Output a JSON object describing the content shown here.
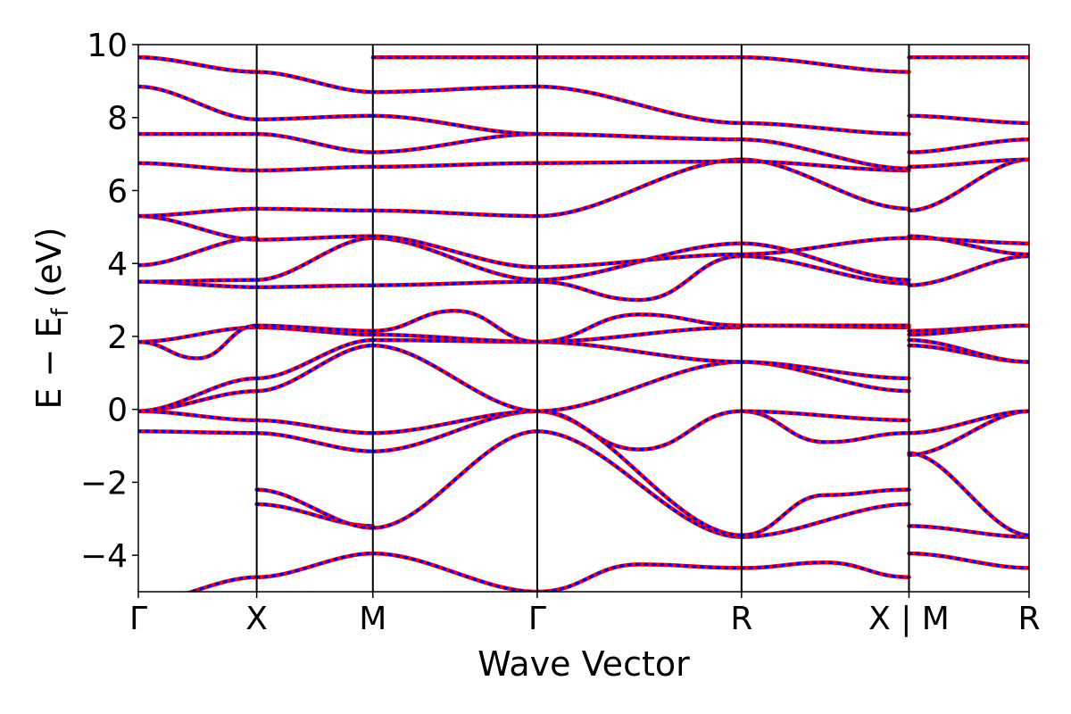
{
  "chart_data": {
    "type": "line",
    "title": "",
    "xlabel": "Wave Vector",
    "ylabel": "E − E",
    "ylabel_sub": "f",
    "ylabel_unit": " (eV)",
    "ylim": [
      -5,
      10
    ],
    "xlim": [
      0,
      1
    ],
    "yticks": [
      -4,
      -2,
      0,
      2,
      4,
      6,
      8,
      10
    ],
    "ytick_labels": [
      "−4",
      "−2",
      "0",
      "2",
      "4",
      "6",
      "8",
      "10"
    ],
    "kpoints": [
      {
        "x": 0.0,
        "label": "Γ"
      },
      {
        "x": 0.1329,
        "label": "X"
      },
      {
        "x": 0.2633,
        "label": "M"
      },
      {
        "x": 0.4478,
        "label": "Γ"
      },
      {
        "x": 0.6772,
        "label": "R"
      },
      {
        "x": 0.8652,
        "label": "X | M"
      },
      {
        "x": 1.0,
        "label": "R"
      }
    ],
    "colors": {
      "series_a": "#ff0000",
      "series_b": "#0000ff",
      "frame": "#000000"
    },
    "segments": [
      {
        "x": [
          0.0,
          0.1329
        ],
        "bands": [
          [
            -5.3,
            -4.6
          ],
          [
            -0.6,
            -0.65
          ],
          [
            -0.05,
            -0.3
          ],
          [
            -0.05,
            0.5
          ],
          [
            -0.05,
            0.85
          ],
          [
            1.85,
            2.25
          ],
          [
            1.85,
            1.4,
            2.3
          ],
          [
            3.5,
            3.35
          ],
          [
            3.5,
            3.55
          ],
          [
            3.95,
            4.7
          ],
          [
            5.3,
            4.65
          ],
          [
            5.3,
            5.5
          ],
          [
            6.75,
            6.55
          ],
          [
            7.55,
            7.55
          ],
          [
            8.85,
            7.95
          ],
          [
            9.65,
            9.25
          ],
          [
            9.65,
            9.25
          ]
        ]
      },
      {
        "x": [
          0.1329,
          0.2633
        ],
        "bands": [
          [
            -4.6,
            -3.95
          ],
          [
            -2.6,
            -3.2
          ],
          [
            -2.2,
            -3.25
          ],
          [
            -0.65,
            -1.15
          ],
          [
            -0.3,
            -0.65
          ],
          [
            0.5,
            1.75
          ],
          [
            0.85,
            1.9
          ],
          [
            2.25,
            2.05
          ],
          [
            2.3,
            2.15
          ],
          [
            3.35,
            3.4
          ],
          [
            3.55,
            4.7
          ],
          [
            4.65,
            4.75
          ],
          [
            5.5,
            5.45
          ],
          [
            6.55,
            6.65
          ],
          [
            7.55,
            7.05
          ],
          [
            7.95,
            8.05
          ],
          [
            9.25,
            8.7
          ]
        ]
      },
      {
        "x": [
          0.2633,
          0.4478
        ],
        "bands": [
          [
            -3.95,
            -5.0
          ],
          [
            -3.25,
            -0.6
          ],
          [
            -1.15,
            -0.05
          ],
          [
            -0.65,
            -0.05
          ],
          [
            1.75,
            -0.05
          ],
          [
            1.9,
            1.85
          ],
          [
            2.05,
            1.85
          ],
          [
            2.15,
            2.7,
            1.85
          ],
          [
            3.4,
            3.5
          ],
          [
            4.7,
            3.55
          ],
          [
            4.75,
            3.9
          ],
          [
            5.45,
            5.3
          ],
          [
            6.65,
            6.75
          ],
          [
            7.05,
            7.55
          ],
          [
            8.05,
            7.55
          ],
          [
            8.7,
            8.85
          ],
          [
            9.65,
            9.65
          ]
        ]
      },
      {
        "x": [
          0.4478,
          0.6772
        ],
        "bands": [
          [
            -5.0,
            -4.25,
            -4.35
          ],
          [
            -0.6,
            -3.5
          ],
          [
            -0.05,
            -3.45
          ],
          [
            -0.05,
            -1.1,
            -0.05
          ],
          [
            -0.05,
            1.3
          ],
          [
            1.85,
            1.3
          ],
          [
            1.85,
            2.25
          ],
          [
            1.85,
            2.6,
            2.3
          ],
          [
            3.5,
            3.0,
            4.2
          ],
          [
            3.55,
            4.55
          ],
          [
            3.9,
            4.25
          ],
          [
            5.3,
            6.85
          ],
          [
            6.75,
            6.8
          ],
          [
            7.55,
            7.4
          ],
          [
            7.55,
            7.4
          ],
          [
            8.85,
            7.85
          ],
          [
            9.65,
            9.65
          ]
        ]
      },
      {
        "x": [
          0.6772,
          0.8652
        ],
        "bands": [
          [
            -4.35,
            -4.2,
            -4.6
          ],
          [
            -3.5,
            -2.6
          ],
          [
            -3.45,
            -2.35,
            -2.2
          ],
          [
            -0.05,
            -0.9,
            -0.65
          ],
          [
            -0.05,
            -0.3
          ],
          [
            1.3,
            0.5
          ],
          [
            1.3,
            0.85
          ],
          [
            2.3,
            2.25
          ],
          [
            2.3,
            2.3
          ],
          [
            4.2,
            3.45
          ],
          [
            4.55,
            3.55
          ],
          [
            4.25,
            4.7
          ],
          [
            6.85,
            5.5
          ],
          [
            6.8,
            6.55
          ],
          [
            7.4,
            6.6
          ],
          [
            7.85,
            7.55
          ],
          [
            9.65,
            9.25
          ]
        ]
      },
      {
        "x": [
          0.8652,
          1.0
        ],
        "bands": [
          [
            -3.95,
            -4.35
          ],
          [
            -3.2,
            -3.5
          ],
          [
            -1.2,
            -3.45
          ],
          [
            -1.25,
            -0.05
          ],
          [
            -0.65,
            -0.05
          ],
          [
            1.75,
            1.3
          ],
          [
            1.9,
            1.3
          ],
          [
            2.05,
            2.3
          ],
          [
            2.15,
            2.3
          ],
          [
            3.4,
            4.2
          ],
          [
            4.7,
            4.55
          ],
          [
            4.75,
            4.25
          ],
          [
            5.45,
            6.85
          ],
          [
            6.65,
            6.85
          ],
          [
            7.05,
            7.4
          ],
          [
            8.05,
            7.85
          ],
          [
            9.65,
            9.65
          ]
        ]
      }
    ]
  }
}
